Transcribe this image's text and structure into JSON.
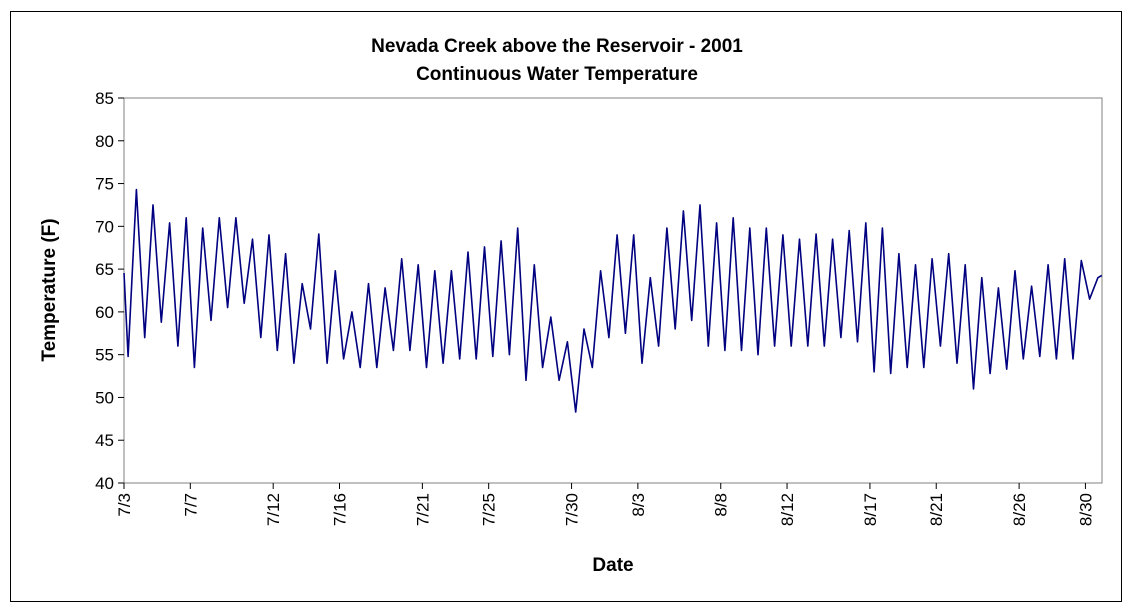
{
  "chart_data": {
    "type": "line",
    "title": [
      "Nevada Creek above the Reservoir - 2001",
      "Continuous Water Temperature"
    ],
    "xlabel": "Date",
    "ylabel": "Temperature (F)",
    "ylim": [
      40,
      85
    ],
    "y_ticks": [
      40,
      45,
      50,
      55,
      60,
      65,
      70,
      75,
      80,
      85
    ],
    "x_ticks": [
      "7/3",
      "7/7",
      "7/12",
      "7/16",
      "7/21",
      "7/25",
      "7/30",
      "8/3",
      "8/8",
      "8/12",
      "8/17",
      "8/21",
      "8/26",
      "8/30"
    ],
    "x_range": [
      "7/3",
      "8/31"
    ],
    "grid": false,
    "legend": "none",
    "line_color": "#000080",
    "series": [
      {
        "daily_max": [
          74.3,
          72.5,
          70.4,
          71.0,
          69.8,
          71.0,
          71.0,
          68.5,
          69.0,
          66.8,
          63.3,
          69.1,
          64.8,
          60.0,
          63.3,
          62.8,
          66.2,
          65.5,
          64.8,
          64.8,
          67.0,
          67.6,
          68.3,
          69.8,
          65.5,
          59.4,
          56.5,
          58.0,
          64.8,
          69.0,
          69.0,
          64.0,
          69.8,
          71.8,
          72.5,
          70.4,
          71.0,
          69.8,
          69.8,
          69.0,
          68.5,
          69.1,
          68.5,
          69.5,
          70.4,
          69.8,
          66.8,
          65.5,
          66.2,
          66.8,
          65.5,
          64.0,
          62.8,
          64.8,
          63.0,
          65.5,
          66.2,
          66.0,
          64.0
        ],
        "daily_min": [
          54.8,
          57.0,
          58.8,
          56.0,
          53.5,
          59.0,
          60.5,
          61.0,
          57.0,
          55.5,
          54.0,
          58.0,
          54.0,
          54.5,
          53.5,
          53.5,
          55.5,
          55.5,
          53.5,
          54.0,
          54.5,
          54.5,
          54.8,
          55.0,
          52.0,
          53.5,
          52.0,
          48.3,
          53.5,
          57.0,
          57.5,
          54.0,
          56.0,
          58.0,
          59.0,
          56.0,
          55.5,
          55.5,
          55.0,
          56.0,
          56.0,
          56.0,
          56.0,
          57.0,
          56.5,
          53.0,
          52.8,
          53.5,
          53.5,
          56.0,
          54.0,
          51.0,
          52.8,
          53.3,
          54.5,
          54.8,
          54.5,
          54.5,
          61.5
        ]
      }
    ]
  }
}
